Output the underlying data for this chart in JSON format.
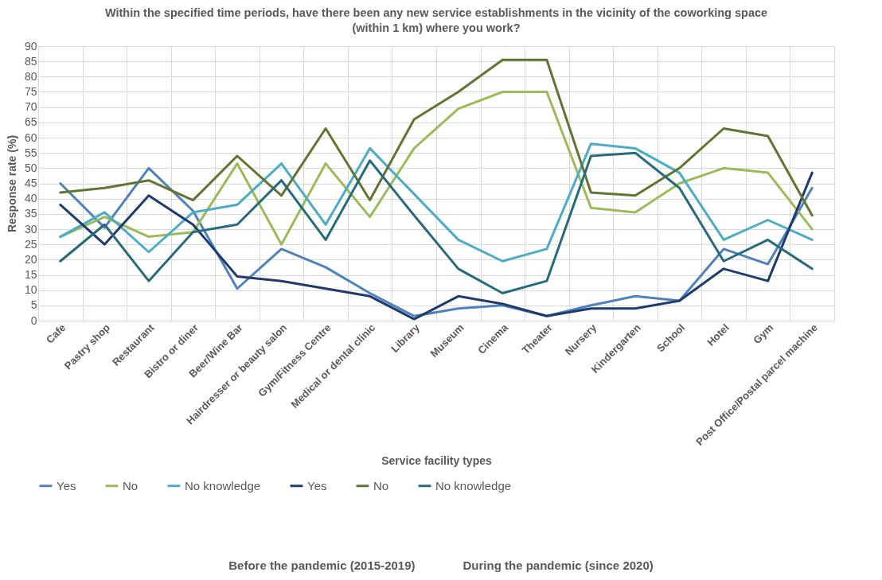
{
  "chart_data": {
    "type": "line",
    "title": "Within the specified time periods, have there been any new service establishments in the vicinity of the coworking space (within 1 km) where you work?",
    "xlabel": "Service facility types",
    "ylabel": "Response rate (%)",
    "categories": [
      "Cafe",
      "Pastry shop",
      "Restaurant",
      "Bistro or diner",
      "Beer/Wine Bar",
      "Hairdresser or beauty salon",
      "Gym/Fitness Centre",
      "Medical or dental clinic",
      "Library",
      "Museum",
      "Cinema",
      "Theater",
      "Nursery",
      "Kindergarten",
      "School",
      "Hotel",
      "Gym",
      "Post Office/Postal parcel machine"
    ],
    "series": [
      {
        "name": "Yes",
        "color": "#4f81bd",
        "values": [
          45,
          30.5,
          50,
          36,
          10.5,
          23.5,
          17.5,
          9,
          1.5,
          4,
          5,
          1.5,
          5,
          8,
          6.5,
          23.5,
          18.5,
          43.5
        ]
      },
      {
        "name": "No",
        "color": "#9bbb59",
        "values": [
          27.5,
          34,
          27.5,
          29,
          51.5,
          25,
          51.5,
          34,
          56.5,
          69.5,
          75,
          75,
          37,
          35.5,
          45,
          50,
          48.5,
          30
        ]
      },
      {
        "name": "No knowledge",
        "color": "#4bacc6",
        "values": [
          27.5,
          35.5,
          22.5,
          35.5,
          38,
          51.5,
          31.5,
          56.5,
          41.5,
          26.5,
          19.5,
          23.5,
          58,
          56.5,
          48.5,
          26.5,
          33,
          26.5
        ]
      },
      {
        "name": "Yes",
        "color": "#1f3b6e",
        "values": [
          38,
          25,
          41,
          31.5,
          14.5,
          13,
          10.5,
          8,
          0.5,
          8,
          5.5,
          1.5,
          4,
          4,
          6.5,
          17,
          13,
          48.5
        ]
      },
      {
        "name": "No",
        "color": "#5f7530",
        "values": [
          42,
          43.5,
          46,
          39.5,
          54,
          41,
          63,
          39.5,
          66,
          75,
          85.5,
          85.5,
          42,
          41,
          50,
          63,
          60.5,
          34.5
        ]
      },
      {
        "name": "No knowledge",
        "color": "#276a7c",
        "values": [
          19.5,
          31.5,
          13,
          29,
          31.5,
          46,
          26.5,
          52.5,
          34.5,
          17,
          9,
          13,
          54,
          55,
          43.5,
          19.5,
          26.5,
          17
        ]
      }
    ],
    "ylim": [
      0,
      90
    ],
    "yticks": [
      0,
      5,
      10,
      15,
      20,
      25,
      30,
      35,
      40,
      45,
      50,
      55,
      60,
      65,
      70,
      75,
      80,
      85,
      90
    ],
    "grid": true,
    "legend": "bottom",
    "marker": "none",
    "line_style": "solid",
    "annotations": [
      "Before the pandemic (2015-2019)",
      "During the pandemic (since 2020)"
    ]
  }
}
